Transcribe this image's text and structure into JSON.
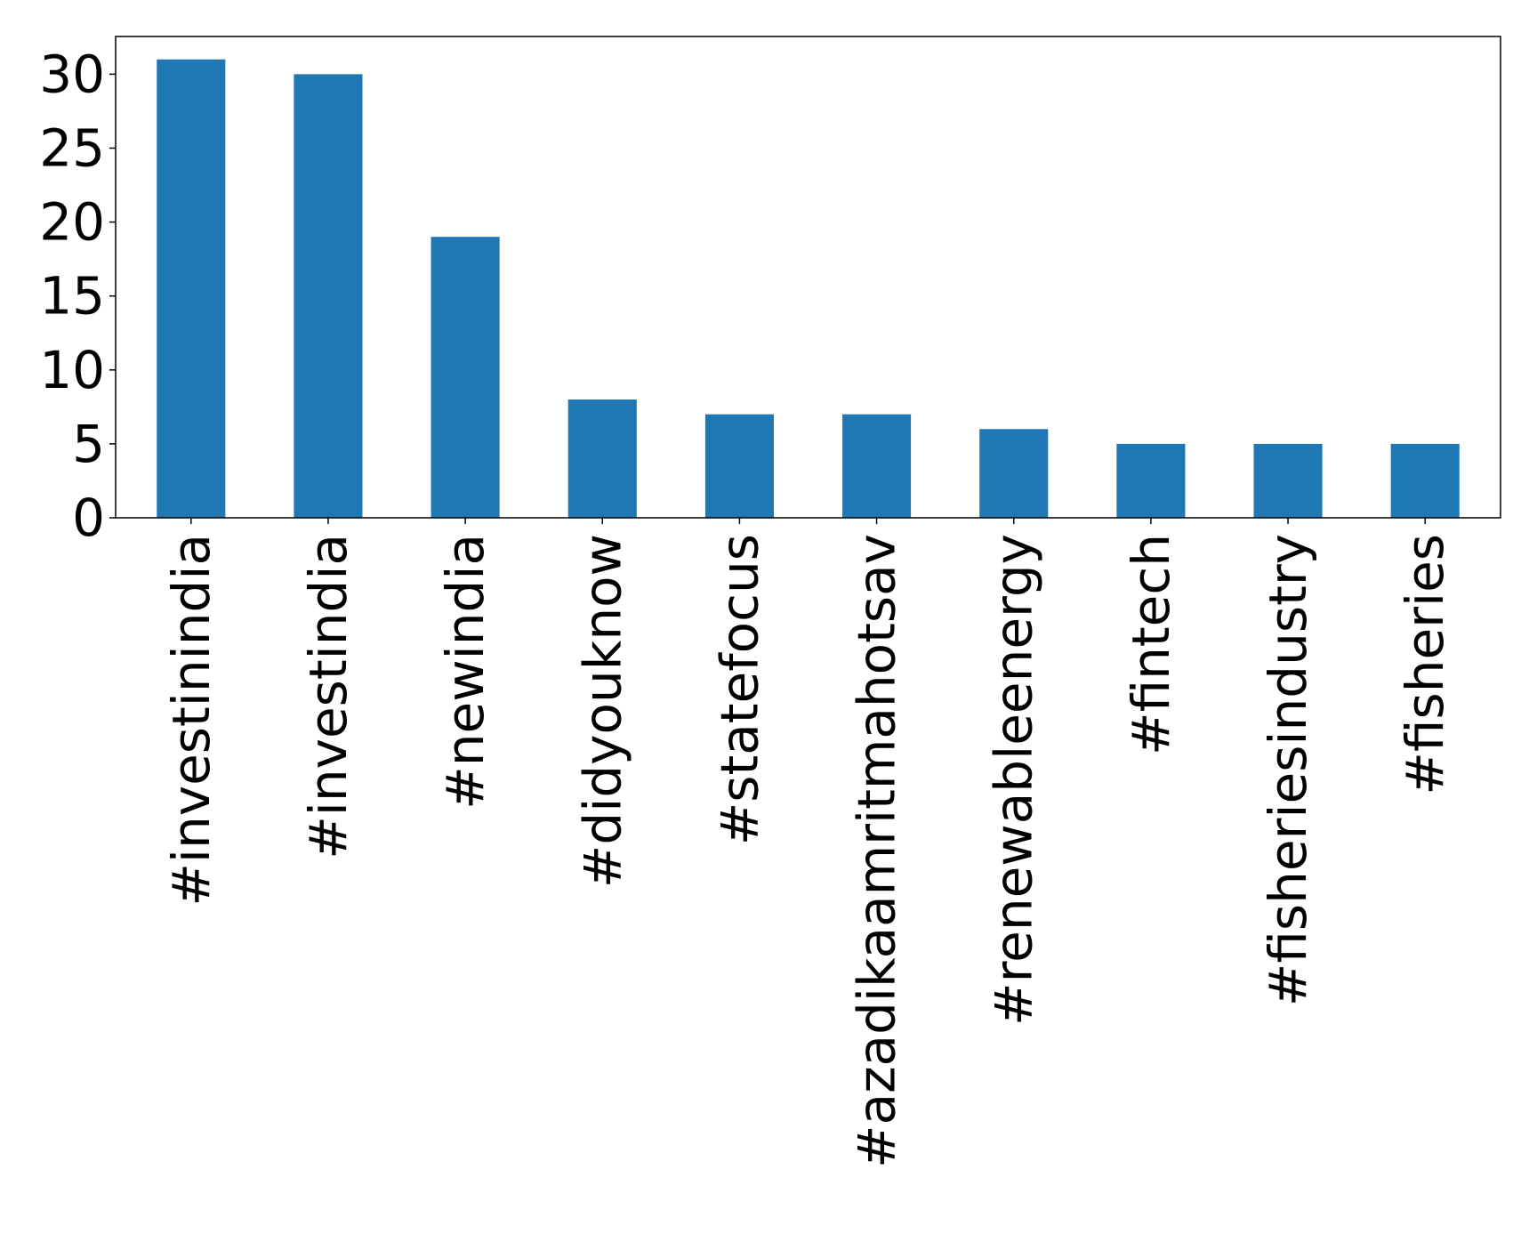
{
  "chart_data": {
    "type": "bar",
    "title": "",
    "xlabel": "",
    "ylabel": "",
    "categories": [
      "#investinindia",
      "#investindia",
      "#newindia",
      "#didyouknow",
      "#statefocus",
      "#azadikaamritmahotsav",
      "#renewableenergy",
      "#fintech",
      "#fisheriesindustry",
      "#fisheries"
    ],
    "values": [
      31,
      30,
      19,
      8,
      7,
      7,
      6,
      5,
      5,
      5
    ],
    "yticks": [
      0,
      5,
      10,
      15,
      20,
      25,
      30
    ],
    "ylim": [
      0,
      32.55
    ],
    "grid": false,
    "legend": "none",
    "bar_color": "#1f77b4",
    "axis_color": "#000000"
  }
}
